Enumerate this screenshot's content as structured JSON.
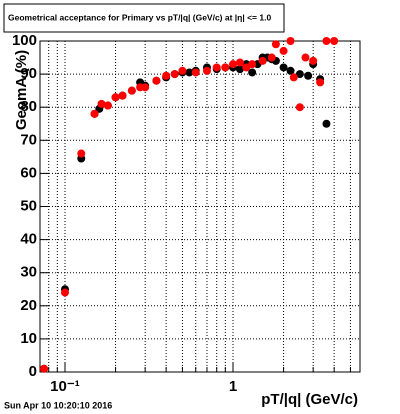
{
  "chart_data": {
    "type": "scatter",
    "title": "Geometrical acceptance for Primary vs pT/|q| (GeV/c) at |η| <= 1.0",
    "x_label": "pT/|q| (GeV/c)",
    "y_label": "GeomA (%)",
    "footer": "Sun Apr 10 10:20:10 2016",
    "xlog": true,
    "grid": true,
    "xlim": [
      0.071,
      5.7
    ],
    "ylim": [
      0,
      100
    ],
    "xticks": [
      {
        "value": 0.1,
        "label": "10⁻¹"
      },
      1
    ],
    "xminorticks": [
      0.08,
      0.09,
      0.2,
      0.3,
      0.4,
      0.5,
      0.6,
      0.7,
      0.8,
      0.9,
      2,
      3,
      4,
      5
    ],
    "yticks": [
      0,
      10,
      20,
      30,
      40,
      50,
      60,
      70,
      80,
      90,
      100
    ],
    "series": [
      {
        "color": "#000000",
        "x": [
          0.075,
          0.1,
          0.125,
          0.15,
          0.16,
          0.18,
          0.2,
          0.22,
          0.25,
          0.28,
          0.3,
          0.35,
          0.4,
          0.45,
          0.5,
          0.55,
          0.6,
          0.7,
          0.8,
          0.9,
          1.0,
          1.1,
          1.2,
          1.3,
          1.4,
          1.5,
          1.6,
          1.7,
          1.8,
          2.0,
          2.2,
          2.5,
          2.8,
          3.0,
          3.3,
          3.6
        ],
        "values": [
          1,
          25,
          64.5,
          78,
          79.5,
          80.5,
          83,
          83.5,
          85,
          87.5,
          86.5,
          88,
          89,
          90,
          90.5,
          90.5,
          91,
          92,
          91.5,
          92,
          92,
          91.5,
          93,
          90.5,
          93,
          95,
          95,
          94.5,
          94,
          92,
          91,
          90,
          89.5,
          93,
          88.5,
          75
        ]
      },
      {
        "color": "#ff0000",
        "x": [
          0.075,
          0.1,
          0.125,
          0.15,
          0.165,
          0.18,
          0.2,
          0.22,
          0.25,
          0.28,
          0.3,
          0.35,
          0.4,
          0.45,
          0.5,
          0.6,
          0.7,
          0.8,
          0.9,
          1.0,
          1.1,
          1.2,
          1.3,
          1.5,
          1.7,
          1.8,
          2.0,
          2.2,
          2.3,
          2.5,
          2.7,
          3.0,
          3.3,
          3.6,
          4.0
        ],
        "values": [
          1,
          24,
          66,
          78,
          81,
          80.5,
          83,
          83.5,
          85,
          86,
          86,
          88,
          89.5,
          90,
          91,
          90.5,
          91,
          92,
          92,
          93,
          93.5,
          92,
          93,
          94,
          95,
          99,
          97,
          100,
          89,
          80,
          95,
          94,
          87.5,
          100,
          100
        ]
      }
    ]
  }
}
